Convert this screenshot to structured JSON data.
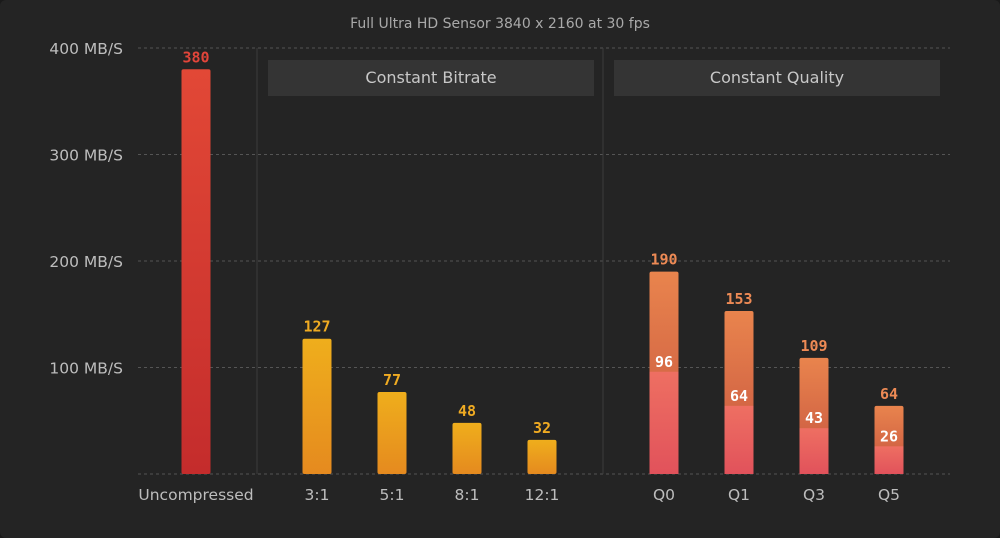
{
  "chart_data": {
    "type": "bar",
    "title": "Full Ultra HD Sensor 3840 x 2160 at 30 fps",
    "y_ticks": [
      {
        "value": 400,
        "label": "400 MB/S"
      },
      {
        "value": 300,
        "label": "300 MB/S"
      },
      {
        "value": 200,
        "label": "200 MB/S"
      },
      {
        "value": 100,
        "label": "100 MB/S"
      }
    ],
    "ylim": [
      0,
      400
    ],
    "grid": true,
    "groups": [
      "Constant Bitrate",
      "Constant Quality"
    ],
    "categories": [
      "Uncompressed",
      "3:1",
      "5:1",
      "8:1",
      "12:1",
      "Q0",
      "Q1",
      "Q3",
      "Q5"
    ],
    "values": [
      380,
      127,
      77,
      48,
      32,
      190,
      153,
      109,
      64
    ],
    "value_labels": [
      "380",
      "127",
      "77",
      "48",
      "32",
      "190",
      "153",
      "109",
      "64"
    ],
    "inner_values": [
      null,
      null,
      null,
      null,
      null,
      96,
      64,
      43,
      26
    ],
    "inner_labels": [
      "",
      "",
      "",
      "",
      "",
      "96",
      "64",
      "43",
      "26"
    ],
    "bar_group": [
      "uncompressed",
      "bitrate",
      "bitrate",
      "bitrate",
      "bitrate",
      "quality",
      "quality",
      "quality",
      "quality"
    ],
    "colors": {
      "uncompressed_top": "#e24836",
      "uncompressed_bottom": "#c42c2c",
      "uncompressed_label": "#e2453a",
      "bitrate_top": "#efae1c",
      "bitrate_bottom": "#e58a1f",
      "bitrate_label": "#f0ab22",
      "quality_top": "#e9844d",
      "quality_bottom": "#c5523f",
      "quality_inner_top": "#ee6f62",
      "quality_inner_bottom": "#e1525b",
      "quality_label": "#ed8a55",
      "grid": "#555555"
    }
  }
}
